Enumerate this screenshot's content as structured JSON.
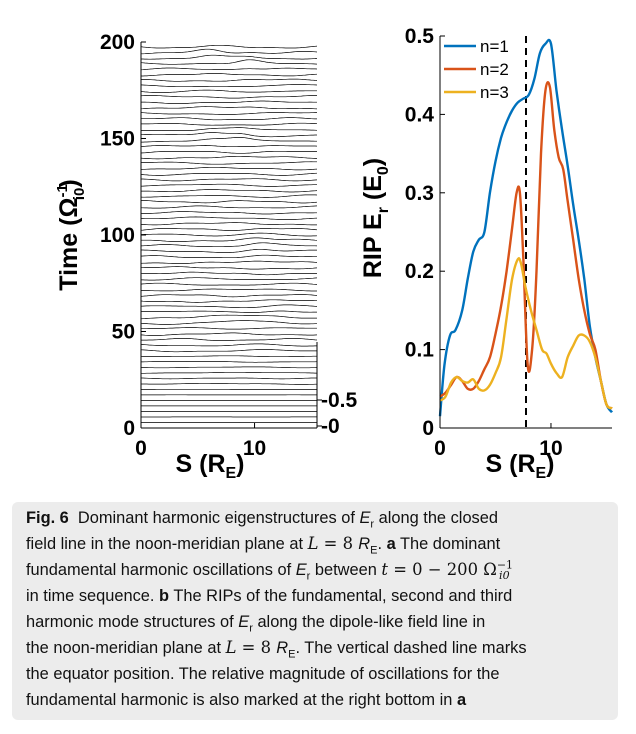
{
  "chart_data": [
    {
      "panel": "a",
      "type": "line",
      "xlabel": "S (R",
      "xlabel_sub": "E",
      "xlabel_close": ")",
      "ylabel": "Time (Ω",
      "ylabel_sup": "-1",
      "ylabel_sub": "i0",
      "ylabel_close": ")",
      "xlim": [
        0,
        15.5
      ],
      "ylim": [
        0,
        200
      ],
      "x_ticks": [
        "0",
        "10"
      ],
      "x_tick_values": [
        0,
        10
      ],
      "y_ticks": [
        "0",
        "50",
        "100",
        "150",
        "200"
      ],
      "y_tick_values": [
        0,
        50,
        100,
        150,
        200
      ],
      "right_axis_ticks": [
        "-0",
        "-0.5"
      ],
      "right_axis_values": [
        0,
        0.5
      ],
      "trace_count": 70,
      "trace_spacing": 2.86,
      "peak_events": [
        {
          "time": 193,
          "s": 6.0,
          "width": 1.4,
          "amp": 1.5
        },
        {
          "time": 189,
          "s": 9.5,
          "width": 1.3,
          "amp": 1.5
        },
        {
          "time": 151,
          "s": 6.2,
          "width": 1.5,
          "amp": 1.5
        },
        {
          "time": 150,
          "s": 8.7,
          "width": 1.2,
          "amp": 1.4
        },
        {
          "time": 94,
          "s": 10.3,
          "width": 1.5,
          "amp": 1.5
        },
        {
          "time": 56,
          "s": 8.4,
          "width": 2.2,
          "amp": 1.2
        },
        {
          "time": 58,
          "s": 12.2,
          "width": 1.5,
          "amp": 1.0
        }
      ]
    },
    {
      "panel": "b",
      "type": "line",
      "xlabel": "S (R",
      "xlabel_sub": "E",
      "xlabel_close": ")",
      "ylabel": "RIP E",
      "ylabel_sub": "r",
      "ylabel_paren": " (E",
      "ylabel_paren_sub": "0",
      "ylabel_close": ")",
      "xlim": [
        0,
        15.5
      ],
      "ylim": [
        0,
        0.5
      ],
      "x_ticks": [
        "0",
        "10"
      ],
      "x_tick_values": [
        0,
        10
      ],
      "y_ticks": [
        "0",
        "0.1",
        "0.2",
        "0.3",
        "0.4",
        "0.5"
      ],
      "y_tick_values": [
        0,
        0.1,
        0.2,
        0.3,
        0.4,
        0.5
      ],
      "equator_line_x": 7.75,
      "legend_position": "top-left",
      "series": [
        {
          "name": "n=1",
          "color": "#0072bd",
          "x": [
            0,
            0.4,
            0.9,
            1.4,
            2.0,
            2.5,
            3.0,
            3.5,
            4.0,
            4.5,
            5.0,
            5.5,
            6.0,
            6.5,
            7.0,
            7.5,
            8.0,
            8.5,
            9.0,
            9.5,
            10.0,
            10.5,
            11.0,
            11.5,
            12.0,
            12.5,
            13.0,
            13.5,
            14.0,
            14.5,
            15.0,
            15.5
          ],
          "y": [
            0.015,
            0.08,
            0.118,
            0.125,
            0.15,
            0.19,
            0.225,
            0.24,
            0.25,
            0.3,
            0.34,
            0.37,
            0.39,
            0.405,
            0.415,
            0.42,
            0.425,
            0.445,
            0.478,
            0.49,
            0.49,
            0.43,
            0.38,
            0.335,
            0.285,
            0.24,
            0.19,
            0.13,
            0.09,
            0.06,
            0.03,
            0.02
          ]
        },
        {
          "name": "n=2",
          "color": "#d95319",
          "x": [
            0,
            0.5,
            1.0,
            1.5,
            2.0,
            2.5,
            3.0,
            3.5,
            4.0,
            4.5,
            5.0,
            5.5,
            6.0,
            6.5,
            6.9,
            7.2,
            7.5,
            7.9,
            8.3,
            8.7,
            9.1,
            9.5,
            9.9,
            10.3,
            10.7,
            11.1,
            11.5,
            12.0,
            12.5,
            13.0,
            13.5,
            14.0,
            14.5,
            15.0,
            15.5
          ],
          "y": [
            0.04,
            0.045,
            0.055,
            0.065,
            0.06,
            0.05,
            0.05,
            0.06,
            0.075,
            0.09,
            0.12,
            0.155,
            0.2,
            0.255,
            0.3,
            0.3,
            0.22,
            0.08,
            0.1,
            0.2,
            0.35,
            0.43,
            0.435,
            0.38,
            0.345,
            0.33,
            0.29,
            0.24,
            0.19,
            0.15,
            0.12,
            0.1,
            0.06,
            0.03,
            0.025
          ]
        },
        {
          "name": "n=3",
          "color": "#edb120",
          "x": [
            0,
            0.5,
            1.0,
            1.5,
            2.0,
            2.5,
            3.0,
            3.5,
            4.0,
            4.5,
            5.0,
            5.5,
            6.0,
            6.5,
            7.0,
            7.3,
            7.7,
            8.2,
            8.7,
            9.2,
            9.6,
            10.0,
            10.5,
            11.0,
            11.5,
            12.0,
            12.5,
            13.0,
            13.5,
            14.0,
            14.5,
            15.0,
            15.5
          ],
          "y": [
            0.035,
            0.04,
            0.058,
            0.065,
            0.06,
            0.058,
            0.062,
            0.05,
            0.048,
            0.055,
            0.07,
            0.09,
            0.14,
            0.19,
            0.215,
            0.21,
            0.18,
            0.15,
            0.125,
            0.1,
            0.095,
            0.082,
            0.07,
            0.065,
            0.09,
            0.105,
            0.118,
            0.118,
            0.11,
            0.09,
            0.06,
            0.03,
            0.025
          ]
        }
      ]
    }
  ],
  "caption": {
    "fig_label": "Fig. 6",
    "line1": "Dominant harmonic eigenstructures of",
    "er": "E",
    "er_sub": "r",
    "line1b": "along the closed",
    "line2a": "field line in the noon-meridian plane at",
    "L": "L",
    "eq8": " = 8 ",
    "RE": "R",
    "RE_sub": "E",
    "dot": ".",
    "a_label": "a",
    "line2b": "The dominant",
    "line3a": "fundamental harmonic oscillations of",
    "line3b": "between",
    "t": "t",
    "t_range": " = 0 − 200 Ω",
    "omega_sup": "−1",
    "omega_sub": "i0",
    "line4": "in time sequence.",
    "b_label": "b",
    "line4b": "The RIPs of the fundamental, second and third",
    "line5a": "harmonic mode structures of",
    "line5b": "along the dipole-like field line in",
    "line6a": "the noon-meridian plane at",
    "line6b": "The vertical dashed line marks",
    "line7": "the equator position. The relative magnitude of oscillations for the",
    "line8": "fundamental harmonic is also marked at the right bottom in"
  }
}
